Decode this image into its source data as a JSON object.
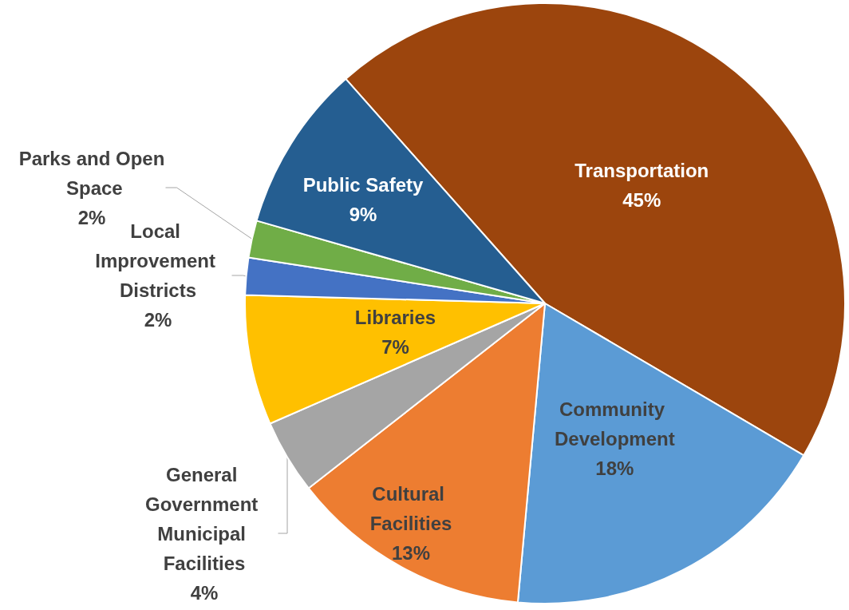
{
  "chart_data": {
    "type": "pie",
    "categories": [
      "Transportation",
      "Community Development",
      "Cultural Facilities",
      "General Government Municipal Facilities",
      "Libraries",
      "Local Improvement Districts",
      "Parks and Open Space",
      "Public Safety"
    ],
    "values": [
      45,
      18,
      13,
      4,
      7,
      2,
      2,
      9
    ],
    "value_labels": [
      "45%",
      "18%",
      "13%",
      "4%",
      "7%",
      "2%",
      "2%",
      "9%"
    ],
    "colors": [
      "#9c450d",
      "#5b9bd5",
      "#ed7d31",
      "#a5a5a5",
      "#ffc000",
      "#4472c4",
      "#70ad47",
      "#255e91"
    ],
    "legend": false
  }
}
